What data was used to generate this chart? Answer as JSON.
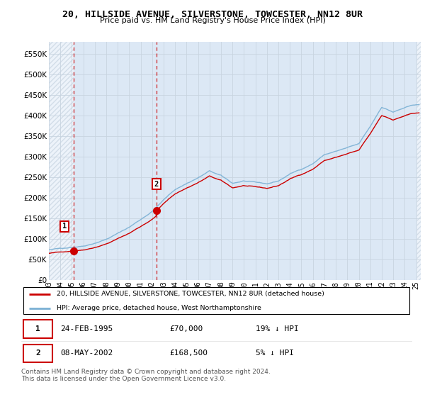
{
  "title": "20, HILLSIDE AVENUE, SILVERSTONE, TOWCESTER, NN12 8UR",
  "subtitle": "Price paid vs. HM Land Registry's House Price Index (HPI)",
  "legend_label_red": "20, HILLSIDE AVENUE, SILVERSTONE, TOWCESTER, NN12 8UR (detached house)",
  "legend_label_blue": "HPI: Average price, detached house, West Northamptonshire",
  "transaction1_date": "24-FEB-1995",
  "transaction1_price": "£70,000",
  "transaction1_hpi": "19% ↓ HPI",
  "transaction2_date": "08-MAY-2002",
  "transaction2_price": "£168,500",
  "transaction2_hpi": "5% ↓ HPI",
  "footer": "Contains HM Land Registry data © Crown copyright and database right 2024.\nThis data is licensed under the Open Government Licence v3.0.",
  "bg_color": "#dce8f5",
  "hatch_bg_color": "#dce8f5",
  "grid_color": "#c8d4e0",
  "red_color": "#cc0000",
  "blue_color": "#7ab0d4",
  "xmin": 1993.0,
  "xmax": 2025.4,
  "ymin": 0,
  "ymax": 580000,
  "sale1_year": 1995.15,
  "sale1_price": 70000,
  "sale2_year": 2002.37,
  "sale2_price": 168500
}
